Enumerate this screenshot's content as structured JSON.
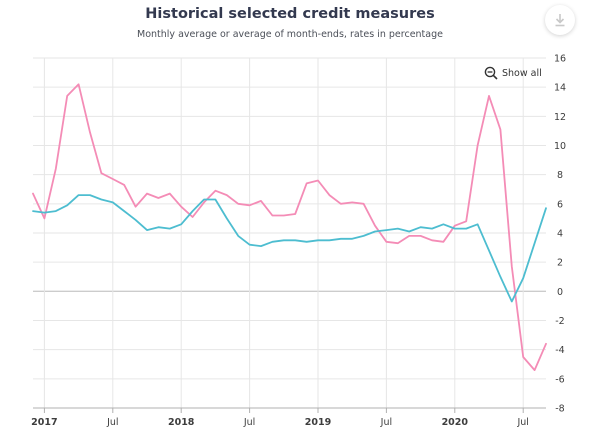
{
  "title": "Historical selected credit measures",
  "subtitle": "Monthly average or average of month-ends, rates in percentage",
  "controls": {
    "show_all_label": "Show all",
    "zoom_icon": "zoom-out-icon",
    "download_icon": "download-icon"
  },
  "colors": {
    "series_pink": "#f48cb6",
    "series_teal": "#4dbdd0",
    "grid": "#e6e6e6",
    "zero_line": "#cccccc"
  },
  "chart_data": {
    "type": "line",
    "ylim": [
      -8,
      16
    ],
    "yticks": [
      -8,
      -6,
      -4,
      -2,
      0,
      2,
      4,
      6,
      8,
      10,
      12,
      14,
      16
    ],
    "x_start": "2016-12",
    "x_end": "2020-09",
    "xticks": [
      {
        "date": "2017-01",
        "label": "2017",
        "bold": true
      },
      {
        "date": "2017-07",
        "label": "Jul",
        "bold": false
      },
      {
        "date": "2018-01",
        "label": "2018",
        "bold": true
      },
      {
        "date": "2018-07",
        "label": "Jul",
        "bold": false
      },
      {
        "date": "2019-01",
        "label": "2019",
        "bold": true
      },
      {
        "date": "2019-07",
        "label": "Jul",
        "bold": false
      },
      {
        "date": "2020-01",
        "label": "2020",
        "bold": true
      },
      {
        "date": "2020-07",
        "label": "Jul",
        "bold": false
      }
    ],
    "grid": true,
    "x": [
      "2016-12",
      "2017-01",
      "2017-02",
      "2017-03",
      "2017-04",
      "2017-05",
      "2017-06",
      "2017-07",
      "2017-08",
      "2017-09",
      "2017-10",
      "2017-11",
      "2017-12",
      "2018-01",
      "2018-02",
      "2018-03",
      "2018-04",
      "2018-05",
      "2018-06",
      "2018-07",
      "2018-08",
      "2018-09",
      "2018-10",
      "2018-11",
      "2018-12",
      "2019-01",
      "2019-02",
      "2019-03",
      "2019-04",
      "2019-05",
      "2019-06",
      "2019-07",
      "2019-08",
      "2019-09",
      "2019-10",
      "2019-11",
      "2019-12",
      "2020-01",
      "2020-02",
      "2020-03",
      "2020-04",
      "2020-05",
      "2020-06",
      "2020-07",
      "2020-08",
      "2020-09"
    ],
    "series": [
      {
        "color": "#f48cb6",
        "values": [
          6.7,
          5.0,
          8.4,
          13.4,
          14.2,
          10.9,
          8.1,
          7.7,
          7.3,
          5.8,
          6.7,
          6.4,
          6.7,
          5.8,
          5.1,
          6.1,
          6.9,
          6.6,
          6.0,
          5.9,
          6.2,
          5.2,
          5.2,
          5.3,
          7.4,
          7.6,
          6.6,
          6.0,
          6.1,
          6.0,
          4.5,
          3.4,
          3.3,
          3.8,
          3.8,
          3.5,
          3.4,
          4.5,
          4.8,
          10.0,
          13.4,
          11.1,
          1.7,
          -4.5,
          -5.4,
          -3.6
        ]
      },
      {
        "color": "#4dbdd0",
        "values": [
          5.5,
          5.4,
          5.5,
          5.9,
          6.6,
          6.6,
          6.3,
          6.1,
          5.5,
          4.9,
          4.2,
          4.4,
          4.3,
          4.6,
          5.5,
          6.3,
          6.3,
          5.0,
          3.8,
          3.2,
          3.1,
          3.4,
          3.5,
          3.5,
          3.4,
          3.5,
          3.5,
          3.6,
          3.6,
          3.8,
          4.1,
          4.2,
          4.3,
          4.1,
          4.4,
          4.3,
          4.6,
          4.3,
          4.3,
          4.6,
          2.8,
          1.0,
          -0.7,
          0.9,
          3.3,
          5.7
        ]
      }
    ]
  }
}
